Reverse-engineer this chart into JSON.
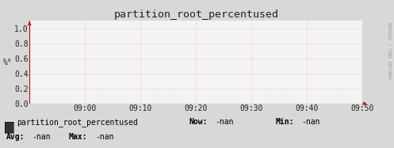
{
  "title": "partition_root_percentused",
  "ylabel": "%°",
  "ylim": [
    0.0,
    1.1
  ],
  "yticks": [
    0.0,
    0.2,
    0.4,
    0.6,
    0.8,
    1.0
  ],
  "xtick_labels": [
    "09:00",
    "09:10",
    "09:20",
    "09:30",
    "09:40",
    "09:50"
  ],
  "bg_color": "#d8d8d8",
  "plot_bg_color": "#f3f3f3",
  "grid_color": "#ffaaaa",
  "axis_color": "#cc0000",
  "title_color": "#222222",
  "legend_label": "partition_root_percentused",
  "legend_box_color": "#333333",
  "legend_text_color": "#000000",
  "watermark": "RRDTOOL / TOBI OETIKER",
  "now_label": "Now:",
  "now_value": "-nan",
  "min_label": "Min:",
  "min_value": "-nan",
  "avg_label": "Avg:",
  "avg_value": "-nan",
  "max_label": "Max:",
  "max_value": "-nan",
  "font_size": 7.0,
  "title_font_size": 9.5
}
